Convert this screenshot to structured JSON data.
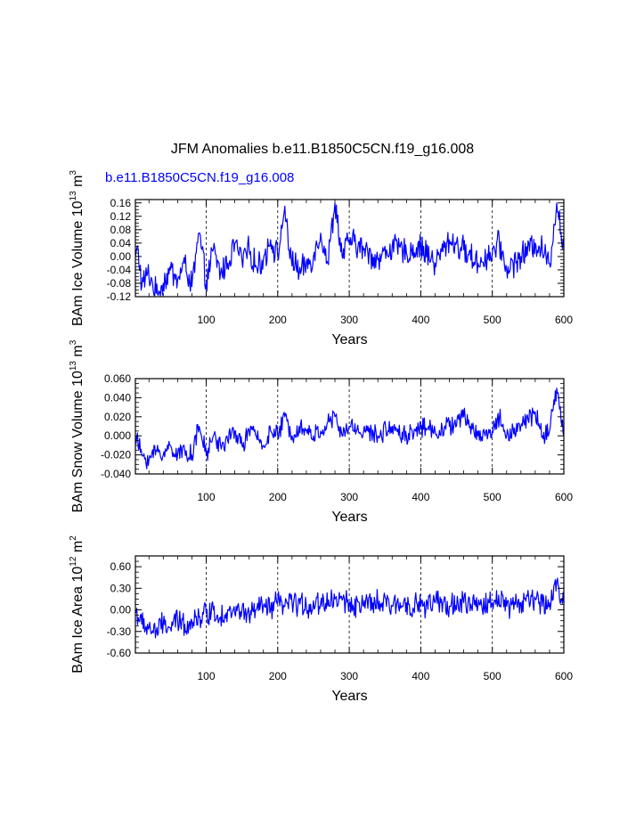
{
  "title": "JFM Anomalies b.e11.B1850C5CN.f19_g16.008",
  "case_label": "b.e11.B1850C5CN.f19_g16.008",
  "line_color": "#0000ff",
  "chart_data": [
    {
      "type": "line",
      "name": "ice-volume",
      "ylabel_main": "BAm Ice Volume 10",
      "ylabel_exp": "13",
      "ylabel_unit": " m",
      "ylabel_unit_exp": "3",
      "xlabel": "Years",
      "xlim": [
        1,
        600
      ],
      "ylim": [
        -0.12,
        0.17
      ],
      "xticks": [
        100,
        200,
        300,
        400,
        500,
        600
      ],
      "xtick_labels": [
        "100",
        "200",
        "300",
        "400",
        "500",
        "600"
      ],
      "yticks": [
        -0.12,
        -0.08,
        -0.04,
        0.0,
        0.04,
        0.08,
        0.12,
        0.16
      ],
      "ytick_labels": [
        "-0.12",
        "-0.08",
        "-0.04",
        "0.00",
        "0.04",
        "0.08",
        "0.12",
        "0.16"
      ],
      "grid_x": [
        100,
        200,
        300,
        400,
        500
      ],
      "anchors": [
        [
          1,
          0.0
        ],
        [
          5,
          0.02
        ],
        [
          10,
          -0.09
        ],
        [
          18,
          -0.05
        ],
        [
          25,
          -0.08
        ],
        [
          30,
          -0.11
        ],
        [
          40,
          -0.08
        ],
        [
          50,
          -0.04
        ],
        [
          60,
          -0.07
        ],
        [
          70,
          -0.02
        ],
        [
          80,
          -0.09
        ],
        [
          90,
          0.07
        ],
        [
          100,
          -0.08
        ],
        [
          110,
          0.02
        ],
        [
          120,
          -0.05
        ],
        [
          130,
          -0.02
        ],
        [
          140,
          0.04
        ],
        [
          150,
          -0.01
        ],
        [
          160,
          0.02
        ],
        [
          170,
          -0.03
        ],
        [
          180,
          -0.01
        ],
        [
          190,
          0.05
        ],
        [
          200,
          0.0
        ],
        [
          210,
          0.15
        ],
        [
          215,
          0.02
        ],
        [
          230,
          -0.05
        ],
        [
          250,
          0.0
        ],
        [
          260,
          0.07
        ],
        [
          270,
          -0.02
        ],
        [
          280,
          0.16
        ],
        [
          290,
          0.0
        ],
        [
          300,
          0.05
        ],
        [
          320,
          0.02
        ],
        [
          340,
          -0.01
        ],
        [
          360,
          0.03
        ],
        [
          380,
          0.01
        ],
        [
          400,
          0.03
        ],
        [
          420,
          -0.02
        ],
        [
          440,
          0.05
        ],
        [
          460,
          0.02
        ],
        [
          480,
          -0.02
        ],
        [
          500,
          0.01
        ],
        [
          510,
          0.04
        ],
        [
          520,
          -0.04
        ],
        [
          540,
          0.0
        ],
        [
          560,
          0.04
        ],
        [
          570,
          0.02
        ],
        [
          580,
          -0.02
        ],
        [
          590,
          0.16
        ],
        [
          600,
          0.02
        ]
      ],
      "amplitude": 0.035
    },
    {
      "type": "line",
      "name": "snow-volume",
      "ylabel_main": "BAm Snow Volume 10",
      "ylabel_exp": "13",
      "ylabel_unit": " m",
      "ylabel_unit_exp": "3",
      "xlabel": "Years",
      "xlim": [
        1,
        600
      ],
      "ylim": [
        -0.04,
        0.06
      ],
      "xticks": [
        100,
        200,
        300,
        400,
        500,
        600
      ],
      "xtick_labels": [
        "100",
        "200",
        "300",
        "400",
        "500",
        "600"
      ],
      "yticks": [
        -0.04,
        -0.02,
        0.0,
        0.02,
        0.04,
        0.06
      ],
      "ytick_labels": [
        "-0.040",
        "-0.020",
        "0.000",
        "0.020",
        "0.040",
        "0.060"
      ],
      "grid_x": [
        100,
        200,
        300,
        400,
        500
      ],
      "anchors": [
        [
          1,
          0.0
        ],
        [
          10,
          -0.02
        ],
        [
          20,
          -0.025
        ],
        [
          30,
          -0.015
        ],
        [
          40,
          -0.02
        ],
        [
          50,
          -0.01
        ],
        [
          60,
          -0.02
        ],
        [
          70,
          -0.015
        ],
        [
          80,
          -0.02
        ],
        [
          90,
          0.01
        ],
        [
          100,
          -0.02
        ],
        [
          110,
          0.0
        ],
        [
          120,
          -0.01
        ],
        [
          130,
          -0.005
        ],
        [
          140,
          0.005
        ],
        [
          150,
          -0.01
        ],
        [
          160,
          0.005
        ],
        [
          170,
          0.0
        ],
        [
          180,
          -0.01
        ],
        [
          190,
          0.005
        ],
        [
          200,
          0.0
        ],
        [
          210,
          0.02
        ],
        [
          220,
          0.0
        ],
        [
          230,
          0.01
        ],
        [
          250,
          0.0
        ],
        [
          260,
          0.005
        ],
        [
          280,
          0.02
        ],
        [
          290,
          0.0
        ],
        [
          300,
          0.01
        ],
        [
          320,
          0.005
        ],
        [
          340,
          0.0
        ],
        [
          360,
          0.01
        ],
        [
          380,
          0.0
        ],
        [
          400,
          0.01
        ],
        [
          420,
          0.005
        ],
        [
          440,
          0.01
        ],
        [
          460,
          0.02
        ],
        [
          480,
          0.0
        ],
        [
          500,
          0.005
        ],
        [
          510,
          0.02
        ],
        [
          520,
          0.0
        ],
        [
          540,
          0.01
        ],
        [
          560,
          0.025
        ],
        [
          570,
          0.0
        ],
        [
          580,
          0.005
        ],
        [
          590,
          0.05
        ],
        [
          600,
          0.0
        ]
      ],
      "amplitude": 0.009
    },
    {
      "type": "line",
      "name": "ice-area",
      "ylabel_main": "BAm Ice Area 10",
      "ylabel_exp": "12",
      "ylabel_unit": " m",
      "ylabel_unit_exp": "2",
      "xlabel": "Years",
      "xlim": [
        1,
        600
      ],
      "ylim": [
        -0.6,
        0.75
      ],
      "xticks": [
        100,
        200,
        300,
        400,
        500,
        600
      ],
      "xtick_labels": [
        "100",
        "200",
        "300",
        "400",
        "500",
        "600"
      ],
      "yticks": [
        -0.6,
        -0.3,
        0.0,
        0.3,
        0.6
      ],
      "ytick_labels": [
        "-0.60",
        "-0.30",
        "0.00",
        "0.30",
        "0.60"
      ],
      "grid_x": [
        100,
        200,
        300,
        400,
        500
      ],
      "anchors": [
        [
          1,
          0.0
        ],
        [
          10,
          -0.2
        ],
        [
          20,
          -0.25
        ],
        [
          30,
          -0.3
        ],
        [
          40,
          -0.2
        ],
        [
          50,
          -0.25
        ],
        [
          60,
          -0.15
        ],
        [
          70,
          -0.2
        ],
        [
          80,
          -0.15
        ],
        [
          90,
          -0.1
        ],
        [
          100,
          -0.05
        ],
        [
          110,
          0.0
        ],
        [
          120,
          -0.1
        ],
        [
          130,
          0.0
        ],
        [
          140,
          -0.05
        ],
        [
          150,
          0.0
        ],
        [
          160,
          -0.1
        ],
        [
          170,
          0.0
        ],
        [
          180,
          0.05
        ],
        [
          190,
          0.0
        ],
        [
          200,
          0.1
        ],
        [
          210,
          0.05
        ],
        [
          220,
          0.1
        ],
        [
          240,
          0.05
        ],
        [
          260,
          0.1
        ],
        [
          280,
          0.15
        ],
        [
          300,
          0.1
        ],
        [
          320,
          0.05
        ],
        [
          340,
          0.1
        ],
        [
          360,
          0.05
        ],
        [
          380,
          0.1
        ],
        [
          400,
          0.05
        ],
        [
          420,
          0.1
        ],
        [
          440,
          0.05
        ],
        [
          460,
          0.1
        ],
        [
          480,
          0.05
        ],
        [
          500,
          0.1
        ],
        [
          515,
          0.2
        ],
        [
          520,
          0.05
        ],
        [
          540,
          0.1
        ],
        [
          560,
          0.15
        ],
        [
          570,
          0.05
        ],
        [
          580,
          0.1
        ],
        [
          592,
          0.35
        ],
        [
          600,
          0.1
        ]
      ],
      "amplitude": 0.15
    }
  ]
}
